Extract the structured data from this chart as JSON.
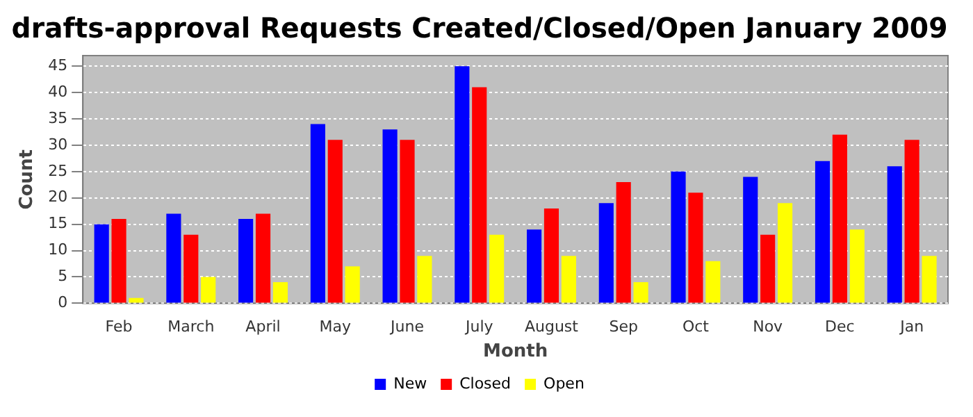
{
  "chart_data": {
    "type": "bar",
    "title": "drafts-approval Requests Created/Closed/Open January 2009",
    "xlabel": "Month",
    "ylabel": "Count",
    "categories": [
      "Feb",
      "March",
      "April",
      "May",
      "June",
      "July",
      "August",
      "Sep",
      "Oct",
      "Nov",
      "Dec",
      "Jan"
    ],
    "series": [
      {
        "name": "New",
        "color": "#0000ff",
        "values": [
          15,
          17,
          16,
          34,
          33,
          45,
          14,
          19,
          25,
          24,
          27,
          26
        ]
      },
      {
        "name": "Closed",
        "color": "#ff0000",
        "values": [
          16,
          13,
          17,
          31,
          31,
          41,
          18,
          23,
          21,
          13,
          32,
          31
        ]
      },
      {
        "name": "Open",
        "color": "#ffff00",
        "values": [
          1,
          5,
          4,
          7,
          9,
          13,
          9,
          4,
          8,
          19,
          14,
          9
        ]
      }
    ],
    "ylim": [
      0,
      47
    ],
    "yticks": [
      0,
      5,
      10,
      15,
      20,
      25,
      30,
      35,
      40,
      45
    ],
    "grid": "y",
    "legend": "bottom"
  }
}
